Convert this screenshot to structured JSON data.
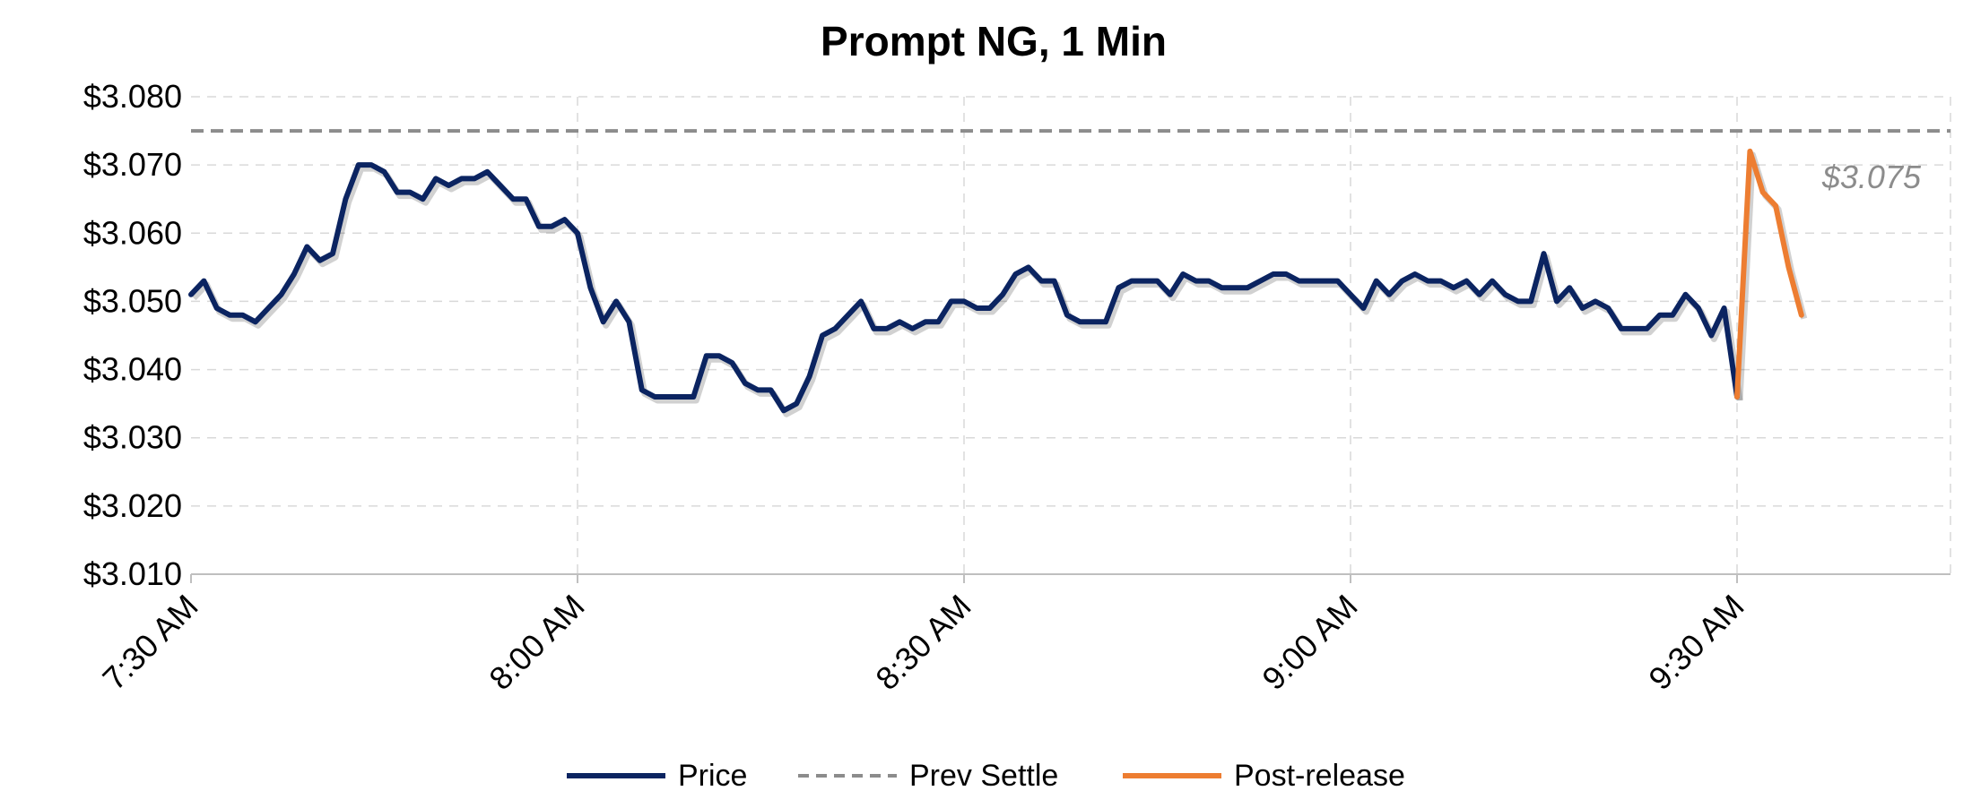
{
  "chart_data": {
    "type": "line",
    "title": "Prompt NG, 1 Min",
    "xlabel": "",
    "ylabel": "",
    "x_start": "7:30 AM",
    "x_end": "9:35 AM",
    "x_interval_minutes": 1,
    "x_ticks": [
      "7:30 AM",
      "8:00 AM",
      "8:30 AM",
      "9:00 AM",
      "9:30 AM"
    ],
    "y_ticks": [
      "$3.010",
      "$3.020",
      "$3.030",
      "$3.040",
      "$3.050",
      "$3.060",
      "$3.070",
      "$3.080"
    ],
    "ylim": [
      3.01,
      3.08
    ],
    "grid": true,
    "legend_position": "bottom",
    "colors": {
      "price": "#0b2461",
      "prev_settle": "#8c8c8c",
      "post_release": "#ed7d31"
    },
    "series": [
      {
        "name": "Price",
        "start": "7:30 AM",
        "values": [
          3.051,
          3.053,
          3.049,
          3.048,
          3.048,
          3.047,
          3.049,
          3.051,
          3.054,
          3.058,
          3.056,
          3.057,
          3.065,
          3.07,
          3.07,
          3.069,
          3.066,
          3.066,
          3.065,
          3.068,
          3.067,
          3.068,
          3.068,
          3.069,
          3.067,
          3.065,
          3.065,
          3.061,
          3.061,
          3.062,
          3.06,
          3.052,
          3.047,
          3.05,
          3.047,
          3.037,
          3.036,
          3.036,
          3.036,
          3.036,
          3.042,
          3.042,
          3.041,
          3.038,
          3.037,
          3.037,
          3.034,
          3.035,
          3.039,
          3.045,
          3.046,
          3.048,
          3.05,
          3.046,
          3.046,
          3.047,
          3.046,
          3.047,
          3.047,
          3.05,
          3.05,
          3.049,
          3.049,
          3.051,
          3.054,
          3.055,
          3.053,
          3.053,
          3.048,
          3.047,
          3.047,
          3.047,
          3.052,
          3.053,
          3.053,
          3.053,
          3.051,
          3.054,
          3.053,
          3.053,
          3.052,
          3.052,
          3.052,
          3.053,
          3.054,
          3.054,
          3.053,
          3.053,
          3.053,
          3.053,
          3.051,
          3.049,
          3.053,
          3.051,
          3.053,
          3.054,
          3.053,
          3.053,
          3.052,
          3.053,
          3.051,
          3.053,
          3.051,
          3.05,
          3.05,
          3.057,
          3.05,
          3.052,
          3.049,
          3.05,
          3.049,
          3.046,
          3.046,
          3.046,
          3.048,
          3.048,
          3.051,
          3.049,
          3.045,
          3.049,
          3.036
        ]
      },
      {
        "name": "Prev Settle",
        "values": [
          3.075
        ]
      },
      {
        "name": "Post-release",
        "start": "9:30 AM",
        "values": [
          3.036,
          3.072,
          3.066,
          3.064,
          3.055,
          3.048
        ]
      }
    ],
    "annotations": [
      {
        "text": "$3.075",
        "series": "Prev Settle"
      }
    ]
  }
}
